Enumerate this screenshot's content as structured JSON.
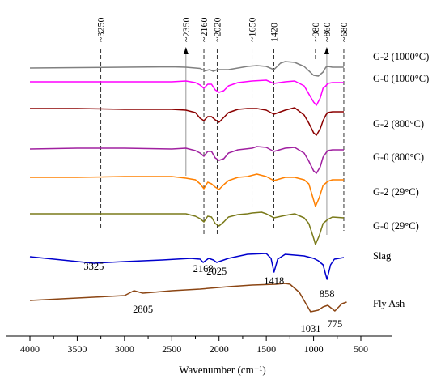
{
  "chart_data": {
    "type": "line",
    "title": "",
    "xlabel": "Wavenumber (cm⁻¹)",
    "ylabel": "",
    "x_ticks": [
      4000,
      3500,
      3000,
      2500,
      2000,
      1500,
      1000,
      500
    ],
    "x_reversed": true,
    "y_ticks_shown": false,
    "grid": false,
    "legend": "labels at right end of each trace",
    "stacked_offset": true,
    "reference_lines": [
      {
        "label": "~3250",
        "x": 3250
      },
      {
        "label": "~2350",
        "x": 2350,
        "arrow": "up"
      },
      {
        "label": "~2160",
        "x": 2160
      },
      {
        "label": "~2020",
        "x": 2020
      },
      {
        "label": "~1650",
        "x": 1650
      },
      {
        "label": "1420",
        "x": 1420
      },
      {
        "label": "~980",
        "x": 980
      },
      {
        "label": "~860",
        "x": 860,
        "arrow": "up"
      },
      {
        "label": "~680",
        "x": 680
      }
    ],
    "series": [
      {
        "name": "G-2 (1000°C)",
        "color": "#808080",
        "points": [
          [
            4000,
            0
          ],
          [
            3500,
            0.5
          ],
          [
            3000,
            1
          ],
          [
            2500,
            1.5
          ],
          [
            2350,
            1
          ],
          [
            2200,
            -0.5
          ],
          [
            2150,
            -3.5
          ],
          [
            2100,
            -2
          ],
          [
            2060,
            -4
          ],
          [
            2020,
            -2
          ],
          [
            1900,
            -2
          ],
          [
            1800,
            0
          ],
          [
            1700,
            2
          ],
          [
            1600,
            3
          ],
          [
            1500,
            2
          ],
          [
            1420,
            -2
          ],
          [
            1350,
            6
          ],
          [
            1300,
            8
          ],
          [
            1200,
            7
          ],
          [
            1100,
            2
          ],
          [
            1000,
            -9
          ],
          [
            950,
            -10
          ],
          [
            900,
            -5
          ],
          [
            870,
            1
          ],
          [
            850,
            2
          ],
          [
            800,
            1
          ],
          [
            680,
            1
          ]
        ]
      },
      {
        "name": "G-0 (1000°C)",
        "color": "#ff00ff",
        "points": [
          [
            4000,
            0
          ],
          [
            3500,
            0
          ],
          [
            3000,
            0
          ],
          [
            2500,
            0
          ],
          [
            2350,
            1
          ],
          [
            2250,
            -1
          ],
          [
            2200,
            -4
          ],
          [
            2160,
            -8
          ],
          [
            2120,
            -3
          ],
          [
            2080,
            -3
          ],
          [
            2040,
            -10
          ],
          [
            2000,
            -13
          ],
          [
            1950,
            -11
          ],
          [
            1900,
            -5
          ],
          [
            1800,
            -1
          ],
          [
            1650,
            1
          ],
          [
            1500,
            2
          ],
          [
            1420,
            -2
          ],
          [
            1300,
            0
          ],
          [
            1200,
            1
          ],
          [
            1100,
            -5
          ],
          [
            1050,
            -15
          ],
          [
            1000,
            -25
          ],
          [
            970,
            -29
          ],
          [
            930,
            -20
          ],
          [
            900,
            -8
          ],
          [
            870,
            -5
          ],
          [
            850,
            -2
          ],
          [
            800,
            -1
          ],
          [
            680,
            -1
          ]
        ]
      },
      {
        "name": "G-2 (800°C)",
        "color": "#8b0000",
        "points": [
          [
            4000,
            0
          ],
          [
            3500,
            0
          ],
          [
            3000,
            -1
          ],
          [
            2500,
            -1
          ],
          [
            2350,
            -2
          ],
          [
            2250,
            -5
          ],
          [
            2200,
            -12
          ],
          [
            2160,
            -15
          ],
          [
            2120,
            -10
          ],
          [
            2080,
            -10
          ],
          [
            2040,
            -14
          ],
          [
            2000,
            -17
          ],
          [
            1950,
            -11
          ],
          [
            1900,
            -5
          ],
          [
            1800,
            -1
          ],
          [
            1700,
            0
          ],
          [
            1600,
            0
          ],
          [
            1500,
            -2
          ],
          [
            1420,
            -7
          ],
          [
            1300,
            -2
          ],
          [
            1200,
            1
          ],
          [
            1100,
            -8
          ],
          [
            1050,
            -18
          ],
          [
            1000,
            -30
          ],
          [
            970,
            -33
          ],
          [
            930,
            -25
          ],
          [
            900,
            -15
          ],
          [
            870,
            -8
          ],
          [
            850,
            -5
          ],
          [
            800,
            -4
          ],
          [
            680,
            -4
          ]
        ]
      },
      {
        "name": "G-0 (800°C)",
        "color": "#a020a0",
        "points": [
          [
            4000,
            0
          ],
          [
            3500,
            1
          ],
          [
            3000,
            1
          ],
          [
            2500,
            0
          ],
          [
            2350,
            1
          ],
          [
            2250,
            -2
          ],
          [
            2200,
            -5
          ],
          [
            2160,
            -9
          ],
          [
            2120,
            -3
          ],
          [
            2080,
            -3
          ],
          [
            2040,
            -11
          ],
          [
            2000,
            -14
          ],
          [
            1950,
            -12
          ],
          [
            1900,
            -5
          ],
          [
            1800,
            -1
          ],
          [
            1650,
            1
          ],
          [
            1600,
            3
          ],
          [
            1500,
            2
          ],
          [
            1420,
            -3
          ],
          [
            1300,
            1
          ],
          [
            1200,
            2
          ],
          [
            1100,
            -5
          ],
          [
            1050,
            -15
          ],
          [
            1000,
            -27
          ],
          [
            970,
            -30
          ],
          [
            930,
            -22
          ],
          [
            900,
            -10
          ],
          [
            870,
            -5
          ],
          [
            850,
            -2
          ],
          [
            800,
            -1
          ],
          [
            680,
            -1
          ]
        ]
      },
      {
        "name": "G-2 (29°C)",
        "color": "#ff8000",
        "points": [
          [
            4000,
            0
          ],
          [
            3500,
            0
          ],
          [
            3000,
            1
          ],
          [
            2500,
            1
          ],
          [
            2350,
            -1
          ],
          [
            2250,
            -3
          ],
          [
            2200,
            -8
          ],
          [
            2160,
            -14
          ],
          [
            2120,
            -6
          ],
          [
            2080,
            -8
          ],
          [
            2040,
            -12
          ],
          [
            2000,
            -15
          ],
          [
            1950,
            -9
          ],
          [
            1900,
            -4
          ],
          [
            1800,
            0
          ],
          [
            1700,
            1
          ],
          [
            1600,
            4
          ],
          [
            1500,
            1
          ],
          [
            1420,
            -4
          ],
          [
            1300,
            0
          ],
          [
            1200,
            0
          ],
          [
            1100,
            -3
          ],
          [
            1050,
            -8
          ],
          [
            1000,
            -28
          ],
          [
            980,
            -36
          ],
          [
            940,
            -25
          ],
          [
            900,
            -10
          ],
          [
            870,
            -7
          ],
          [
            850,
            -5
          ],
          [
            800,
            -3
          ],
          [
            680,
            -3
          ]
        ]
      },
      {
        "name": "G-0 (29°C)",
        "color": "#7a7a1a",
        "points": [
          [
            4000,
            0
          ],
          [
            3500,
            0
          ],
          [
            3000,
            0
          ],
          [
            2500,
            0
          ],
          [
            2350,
            0
          ],
          [
            2250,
            -3
          ],
          [
            2200,
            -6
          ],
          [
            2160,
            -10
          ],
          [
            2120,
            -3
          ],
          [
            2080,
            -4
          ],
          [
            2040,
            -12
          ],
          [
            2000,
            -15
          ],
          [
            1950,
            -10
          ],
          [
            1900,
            -4
          ],
          [
            1800,
            -1
          ],
          [
            1700,
            0
          ],
          [
            1650,
            1
          ],
          [
            1550,
            2
          ],
          [
            1500,
            0
          ],
          [
            1420,
            -5
          ],
          [
            1300,
            -2
          ],
          [
            1200,
            0
          ],
          [
            1100,
            -5
          ],
          [
            1050,
            -12
          ],
          [
            1000,
            -30
          ],
          [
            980,
            -38
          ],
          [
            940,
            -27
          ],
          [
            900,
            -12
          ],
          [
            870,
            -9
          ],
          [
            850,
            -7
          ],
          [
            800,
            -4
          ],
          [
            680,
            -5
          ]
        ]
      },
      {
        "name": "Slag",
        "color": "#0000cd",
        "points": [
          [
            4000,
            0
          ],
          [
            3325,
            -8
          ],
          [
            3000,
            -6
          ],
          [
            2600,
            -4
          ],
          [
            2300,
            -2
          ],
          [
            2200,
            -3
          ],
          [
            2168,
            -7
          ],
          [
            2110,
            -2
          ],
          [
            2060,
            -4
          ],
          [
            2025,
            -7
          ],
          [
            1900,
            -2
          ],
          [
            1700,
            3
          ],
          [
            1500,
            4
          ],
          [
            1450,
            -2
          ],
          [
            1418,
            -19
          ],
          [
            1380,
            -3
          ],
          [
            1300,
            3
          ],
          [
            1200,
            2
          ],
          [
            1100,
            1
          ],
          [
            1000,
            -2
          ],
          [
            950,
            -5
          ],
          [
            900,
            -10
          ],
          [
            858,
            -28
          ],
          [
            820,
            -10
          ],
          [
            780,
            -3
          ],
          [
            680,
            -1
          ]
        ]
      },
      {
        "name": "Fly Ash",
        "color": "#8b4513",
        "points": [
          [
            4000,
            0
          ],
          [
            3500,
            3
          ],
          [
            3000,
            6
          ],
          [
            2900,
            12
          ],
          [
            2805,
            9
          ],
          [
            2700,
            10
          ],
          [
            2500,
            12
          ],
          [
            2200,
            14
          ],
          [
            1900,
            17
          ],
          [
            1650,
            19
          ],
          [
            1400,
            20
          ],
          [
            1300,
            21
          ],
          [
            1250,
            20
          ],
          [
            1150,
            10
          ],
          [
            1031,
            -14
          ],
          [
            950,
            -12
          ],
          [
            900,
            -8
          ],
          [
            850,
            -6
          ],
          [
            775,
            -13
          ],
          [
            700,
            -4
          ],
          [
            650,
            -2
          ]
        ]
      }
    ],
    "peak_labels": [
      {
        "text": "3325",
        "series": "Slag"
      },
      {
        "text": "2168",
        "series": "Slag"
      },
      {
        "text": "2025",
        "series": "Slag"
      },
      {
        "text": "1418",
        "series": "Slag"
      },
      {
        "text": "858",
        "series": "Slag"
      },
      {
        "text": "2805",
        "series": "Fly Ash"
      },
      {
        "text": "1031",
        "series": "Fly Ash"
      },
      {
        "text": "775",
        "series": "Fly Ash"
      }
    ]
  }
}
